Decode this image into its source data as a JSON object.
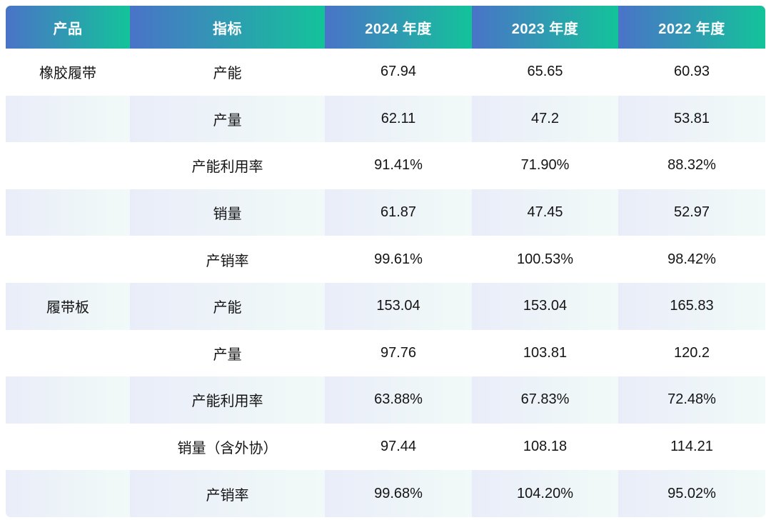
{
  "colors": {
    "header_gradient_start": "#4a73c8",
    "header_gradient_end": "#13c39a",
    "row_tint_gradient_start": "#e9edf9",
    "row_tint_gradient_end": "#f1faf8",
    "header_text": "#ffffff",
    "body_text": "#141414"
  },
  "chart_data": {
    "type": "table",
    "columns": [
      "产品",
      "指标",
      "2024 年度",
      "2023 年度",
      "2022 年度"
    ],
    "rows": [
      [
        "橡胶履带",
        "产能",
        "67.94",
        "65.65",
        "60.93"
      ],
      [
        "",
        "产量",
        "62.11",
        "47.2",
        "53.81"
      ],
      [
        "",
        "产能利用率",
        "91.41%",
        "71.90%",
        "88.32%"
      ],
      [
        "",
        "销量",
        "61.87",
        "47.45",
        "52.97"
      ],
      [
        "",
        "产销率",
        "99.61%",
        "100.53%",
        "98.42%"
      ],
      [
        "履带板",
        "产能",
        "153.04",
        "153.04",
        "165.83"
      ],
      [
        "",
        "产量",
        "97.76",
        "103.81",
        "120.2"
      ],
      [
        "",
        "产能利用率",
        "63.88%",
        "67.83%",
        "72.48%"
      ],
      [
        "",
        "销量（含外协）",
        "97.44",
        "108.18",
        "114.21"
      ],
      [
        "",
        "产销率",
        "99.68%",
        "104.20%",
        "95.02%"
      ]
    ]
  }
}
